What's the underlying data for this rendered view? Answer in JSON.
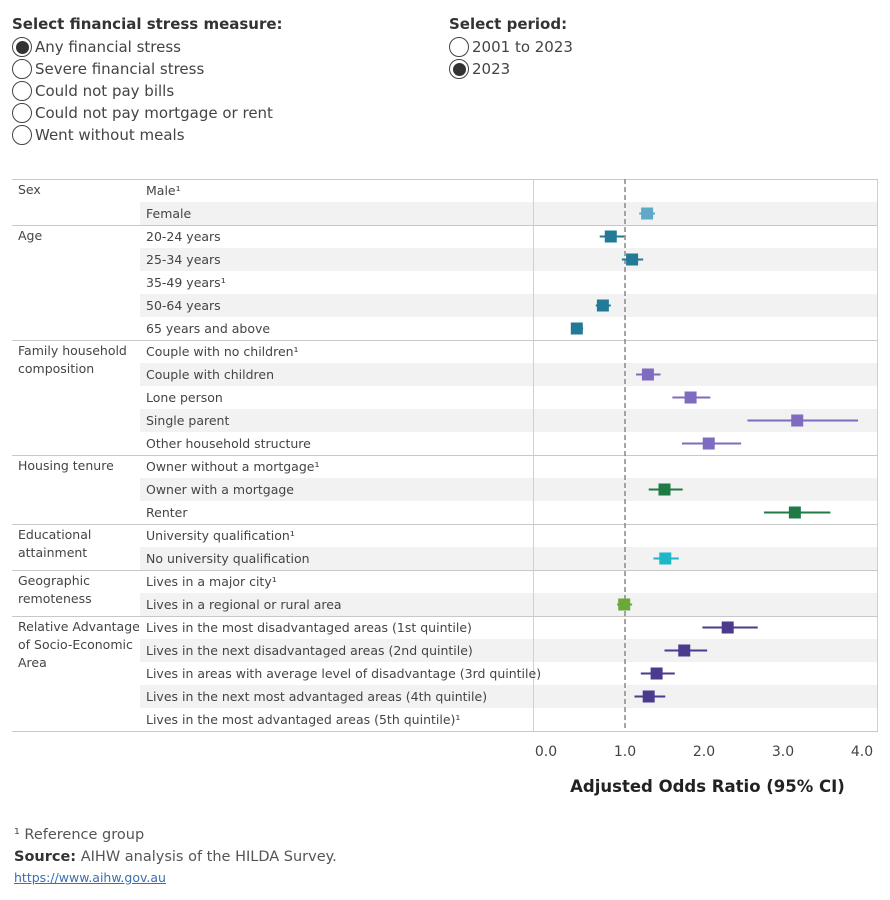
{
  "filters": {
    "measure": {
      "title": "Select financial stress measure:",
      "options": [
        "Any financial stress",
        "Severe financial stress",
        "Could not pay bills",
        "Could not pay mortgage or rent",
        "Went without meals"
      ],
      "selected": 0
    },
    "period": {
      "title": "Select period:",
      "options": [
        "2001 to 2023",
        "2023"
      ],
      "selected": 1
    }
  },
  "chart_data": {
    "type": "scatter",
    "xlabel": "Adjusted Odds Ratio (95% CI)",
    "xlim": [
      0,
      4
    ],
    "xticks": [
      0,
      1,
      2,
      3,
      4
    ],
    "xtick_labels": [
      "0.0",
      "1.0",
      "2.0",
      "3.0",
      "4.0"
    ],
    "reference_line": 1.0,
    "groups": [
      {
        "label": [
          "Sex"
        ],
        "color": "#5fa8c8",
        "rows": [
          {
            "label": "Male¹",
            "ref": true
          },
          {
            "label": "Female",
            "or": 1.28,
            "lo": 1.18,
            "hi": 1.38
          }
        ]
      },
      {
        "label": [
          "Age"
        ],
        "color": "#237a96",
        "rows": [
          {
            "label": "20-24 years",
            "or": 0.82,
            "lo": 0.68,
            "hi": 0.99
          },
          {
            "label": "25-34 years",
            "or": 1.09,
            "lo": 0.96,
            "hi": 1.23
          },
          {
            "label": "35-49 years¹",
            "ref": true
          },
          {
            "label": "50-64 years",
            "or": 0.72,
            "lo": 0.63,
            "hi": 0.82
          },
          {
            "label": "65 years and above",
            "or": 0.39,
            "lo": 0.32,
            "hi": 0.47
          }
        ]
      },
      {
        "label": [
          "Family household",
          "composition"
        ],
        "color": "#7f6bbf",
        "rows": [
          {
            "label": "Couple with no children¹",
            "ref": true
          },
          {
            "label": "Couple with children",
            "or": 1.29,
            "lo": 1.14,
            "hi": 1.45
          },
          {
            "label": "Lone person",
            "or": 1.83,
            "lo": 1.6,
            "hi": 2.08
          },
          {
            "label": "Single parent",
            "or": 3.18,
            "lo": 2.55,
            "hi": 3.95
          },
          {
            "label": "Other household structure",
            "or": 2.06,
            "lo": 1.72,
            "hi": 2.47
          }
        ]
      },
      {
        "label": [
          "Housing tenure"
        ],
        "color": "#1f7a44",
        "rows": [
          {
            "label": "Owner without a mortgage¹",
            "ref": true
          },
          {
            "label": "Owner with a mortgage",
            "or": 1.5,
            "lo": 1.3,
            "hi": 1.73
          },
          {
            "label": "Renter",
            "or": 3.15,
            "lo": 2.76,
            "hi": 3.6
          }
        ]
      },
      {
        "label": [
          "Educational",
          "attainment"
        ],
        "color": "#1fb6c8",
        "rows": [
          {
            "label": "University qualification¹",
            "ref": true
          },
          {
            "label": "No university qualification",
            "or": 1.51,
            "lo": 1.36,
            "hi": 1.68
          }
        ]
      },
      {
        "label": [
          "Geographic",
          "remoteness"
        ],
        "color": "#6aa83a",
        "rows": [
          {
            "label": "Lives in a major city¹",
            "ref": true
          },
          {
            "label": "Lives in a regional or rural area",
            "or": 0.99,
            "lo": 0.9,
            "hi": 1.09
          }
        ]
      },
      {
        "label": [
          "Relative Advantage",
          "of Socio-Economic",
          "Area"
        ],
        "color": "#4b3a8e",
        "rows": [
          {
            "label": "Lives in the most disadvantaged areas (1st quintile)",
            "or": 2.3,
            "lo": 1.98,
            "hi": 2.68
          },
          {
            "label": "Lives in the next disadvantaged areas (2nd quintile)",
            "or": 1.75,
            "lo": 1.5,
            "hi": 2.04
          },
          {
            "label": "Lives in areas with average level of disadvantage (3rd quintile)",
            "or": 1.4,
            "lo": 1.2,
            "hi": 1.63
          },
          {
            "label": "Lives in the next most advantaged areas (4th quintile)",
            "or": 1.3,
            "lo": 1.12,
            "hi": 1.51
          },
          {
            "label": "Lives in the most advantaged areas (5th quintile)¹",
            "ref": true
          }
        ]
      }
    ]
  },
  "footnote": "¹ Reference group",
  "source": {
    "label": "Source:",
    "text": " AIHW analysis of the HILDA Survey."
  },
  "link": "https://www.aihw.gov.au"
}
